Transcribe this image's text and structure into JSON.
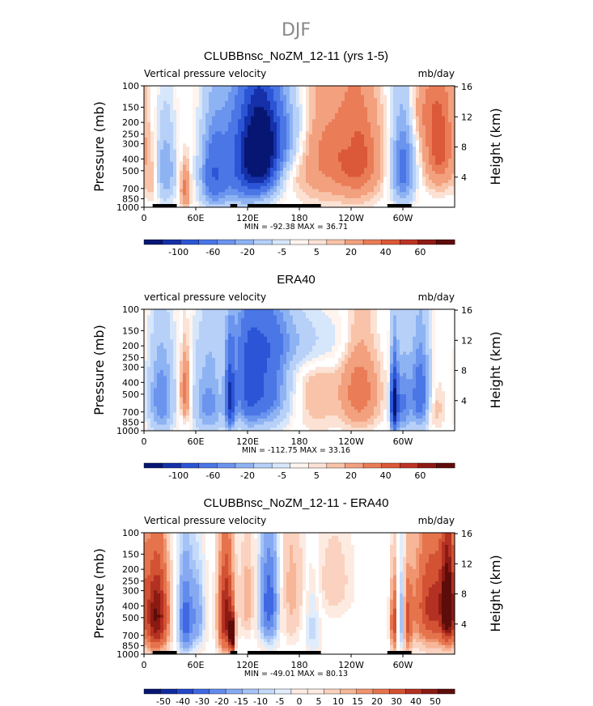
{
  "figure": {
    "title": "DJF"
  },
  "colors": {
    "zero": "#ffffff",
    "land": "#000000",
    "scale_neg": [
      "#fff4ee",
      "#d6e6fb",
      "#b7d0f8",
      "#8eb3f3",
      "#6b94ee",
      "#4a76e6",
      "#2b55d6",
      "#1530a8",
      "#061672"
    ],
    "scale_pos": [
      "#fbe2d4",
      "#f8c3a8",
      "#f2a07e",
      "#ea7c58",
      "#db5838",
      "#bd3424",
      "#8f1a14",
      "#5e0c0a"
    ],
    "diff_neg": [
      "#fdebe2",
      "#e2edfc",
      "#c5dafa",
      "#a6c3f6",
      "#86a9f2",
      "#628bec",
      "#4068e2",
      "#2447c8",
      "#0f2a9e",
      "#061672"
    ],
    "diff_pos": [
      "#fdebe2",
      "#fad2bf",
      "#f6b697",
      "#ef946f",
      "#e5734c",
      "#d25233",
      "#b33122",
      "#8a1a12",
      "#5e0c0a"
    ]
  },
  "chart_data": [
    {
      "type": "heatmap",
      "title": "CLUBBnsc_NoZM_12-11 (yrs 1-5)",
      "left_label": "Vertical pressure velocity",
      "right_label": "mb/day",
      "ylabel": "Pressure (mb)",
      "y2label": "Height (km)",
      "x_ticks": [
        "0",
        "60E",
        "120E",
        "180",
        "120W",
        "60W"
      ],
      "x_tick_lon": [
        0,
        60,
        120,
        180,
        240,
        300
      ],
      "xlim": [
        0,
        360
      ],
      "y_ticks": [
        "100",
        "150",
        "200",
        "250",
        "300",
        "400",
        "500",
        "700",
        "850",
        "1000"
      ],
      "y_tick_values": [
        100,
        150,
        200,
        250,
        300,
        400,
        500,
        700,
        850,
        1000
      ],
      "ylim": [
        100,
        1000
      ],
      "y2_ticks": [
        "16",
        "12",
        "8",
        "4"
      ],
      "y2_values": [
        16,
        12,
        8,
        4
      ],
      "stats": "MIN = -92.38   MAX =  36.71",
      "min": -92.38,
      "max": 36.71,
      "colorbar_labels": [
        "-100",
        "-60",
        "-20",
        "-5",
        "5",
        "20",
        "40",
        "60"
      ],
      "levels": [
        -100,
        -80,
        -60,
        -40,
        -20,
        -10,
        -5,
        -2,
        2,
        5,
        10,
        20,
        30,
        40,
        50,
        60,
        80
      ],
      "land_lon": [
        [
          10,
          38
        ],
        [
          100,
          108
        ],
        [
          120,
          205
        ],
        [
          282,
          310
        ]
      ],
      "blobs": [
        {
          "lon": 135,
          "p": 380,
          "v": -92,
          "wl": 14,
          "wp": 220
        },
        {
          "lon": 115,
          "p": 450,
          "v": -55,
          "wl": 22,
          "wp": 320
        },
        {
          "lon": 150,
          "p": 250,
          "v": -40,
          "wl": 22,
          "wp": 140
        },
        {
          "lon": 80,
          "p": 550,
          "v": -45,
          "wl": 10,
          "wp": 280
        },
        {
          "lon": 25,
          "p": 500,
          "v": -30,
          "wl": 8,
          "wp": 250
        },
        {
          "lon": 48,
          "p": 700,
          "v": 25,
          "wl": 4,
          "wp": 200
        },
        {
          "lon": 10,
          "p": 600,
          "v": 10,
          "wl": 6,
          "wp": 200
        },
        {
          "lon": 215,
          "p": 350,
          "v": 24,
          "wl": 28,
          "wp": 300
        },
        {
          "lon": 250,
          "p": 400,
          "v": 26,
          "wl": 16,
          "wp": 260
        },
        {
          "lon": 238,
          "p": 300,
          "v": -6,
          "wl": 6,
          "wp": 80
        },
        {
          "lon": 300,
          "p": 480,
          "v": -48,
          "wl": 9,
          "wp": 280
        },
        {
          "lon": 342,
          "p": 300,
          "v": 37,
          "wl": 12,
          "wp": 220
        },
        {
          "lon": 320,
          "p": 160,
          "v": 12,
          "wl": 12,
          "wp": 80
        },
        {
          "lon": 200,
          "p": 150,
          "v": -4,
          "wl": 40,
          "wp": 60
        }
      ]
    },
    {
      "type": "heatmap",
      "title": "ERA40",
      "left_label": "vertical pressure velocity",
      "right_label": "mb/day",
      "ylabel": "Pressure (mb)",
      "y2label": "Height (km)",
      "x_ticks": [
        "0",
        "60E",
        "120E",
        "180",
        "120W",
        "60W"
      ],
      "x_tick_lon": [
        0,
        60,
        120,
        180,
        240,
        300
      ],
      "xlim": [
        0,
        360
      ],
      "y_ticks": [
        "100",
        "150",
        "200",
        "250",
        "300",
        "400",
        "500",
        "700",
        "850",
        "1000"
      ],
      "y_tick_values": [
        100,
        150,
        200,
        250,
        300,
        400,
        500,
        700,
        850,
        1000
      ],
      "ylim": [
        100,
        1000
      ],
      "y2_ticks": [
        "16",
        "12",
        "8",
        "4"
      ],
      "y2_values": [
        16,
        12,
        8,
        4
      ],
      "stats": "MIN = -112.75   MAX =  33.16",
      "min": -112.75,
      "max": 33.16,
      "colorbar_labels": [
        "-100",
        "-60",
        "-20",
        "-5",
        "5",
        "20",
        "40",
        "60"
      ],
      "levels": [
        -100,
        -80,
        -60,
        -40,
        -20,
        -10,
        -5,
        -2,
        2,
        5,
        10,
        20,
        30,
        40,
        50,
        60,
        80
      ],
      "land_lon": [],
      "blobs": [
        {
          "lon": 100,
          "p": 550,
          "v": -80,
          "wl": 4,
          "wp": 250
        },
        {
          "lon": 140,
          "p": 420,
          "v": -55,
          "wl": 18,
          "wp": 300
        },
        {
          "lon": 120,
          "p": 450,
          "v": -40,
          "wl": 10,
          "wp": 300
        },
        {
          "lon": 75,
          "p": 600,
          "v": -35,
          "wl": 12,
          "wp": 300
        },
        {
          "lon": 20,
          "p": 550,
          "v": -40,
          "wl": 10,
          "wp": 300
        },
        {
          "lon": 48,
          "p": 480,
          "v": 30,
          "wl": 4,
          "wp": 200
        },
        {
          "lon": 200,
          "p": 500,
          "v": 8,
          "wl": 20,
          "wp": 300
        },
        {
          "lon": 250,
          "p": 480,
          "v": 28,
          "wl": 14,
          "wp": 250
        },
        {
          "lon": 290,
          "p": 600,
          "v": -112,
          "wl": 3,
          "wp": 250
        },
        {
          "lon": 300,
          "p": 600,
          "v": -40,
          "wl": 6,
          "wp": 300
        },
        {
          "lon": 320,
          "p": 500,
          "v": -55,
          "wl": 8,
          "wp": 280
        },
        {
          "lon": 335,
          "p": 650,
          "v": 10,
          "wl": 8,
          "wp": 200
        },
        {
          "lon": 160,
          "p": 180,
          "v": -20,
          "wl": 50,
          "wp": 80
        }
      ]
    },
    {
      "type": "heatmap",
      "title": "CLUBBnsc_NoZM_12-11 - ERA40",
      "left_label": "Vertical pressure velocity",
      "right_label": "mb/day",
      "ylabel": "Pressure (mb)",
      "y2label": "Height (km)",
      "x_ticks": [
        "0",
        "60E",
        "120E",
        "180",
        "120W",
        "60W"
      ],
      "x_tick_lon": [
        0,
        60,
        120,
        180,
        240,
        300
      ],
      "xlim": [
        0,
        360
      ],
      "y_ticks": [
        "100",
        "150",
        "200",
        "250",
        "300",
        "400",
        "500",
        "700",
        "850",
        "1000"
      ],
      "y_tick_values": [
        100,
        150,
        200,
        250,
        300,
        400,
        500,
        700,
        850,
        1000
      ],
      "ylim": [
        100,
        1000
      ],
      "y2_ticks": [
        "16",
        "12",
        "8",
        "4"
      ],
      "y2_values": [
        16,
        12,
        8,
        4
      ],
      "stats": "MIN = -49.01   MAX =  80.13",
      "min": -49.01,
      "max": 80.13,
      "colorbar_labels": [
        "-50",
        "-40",
        "-30",
        "-20",
        "-15",
        "-10",
        "-5",
        "0",
        "5",
        "10",
        "15",
        "20",
        "30",
        "40",
        "50"
      ],
      "levels": [
        -60,
        -50,
        -40,
        -30,
        -20,
        -15,
        -10,
        -5,
        -2,
        2,
        5,
        10,
        15,
        20,
        30,
        40,
        50,
        60
      ],
      "land_lon": [
        [
          10,
          38
        ],
        [
          100,
          108
        ],
        [
          120,
          205
        ],
        [
          282,
          310
        ]
      ],
      "blobs": [
        {
          "lon": 15,
          "p": 480,
          "v": 60,
          "wl": 9,
          "wp": 280
        },
        {
          "lon": 48,
          "p": 520,
          "v": -45,
          "wl": 6,
          "wp": 300
        },
        {
          "lon": 62,
          "p": 480,
          "v": -25,
          "wl": 6,
          "wp": 250
        },
        {
          "lon": 95,
          "p": 480,
          "v": 55,
          "wl": 6,
          "wp": 300
        },
        {
          "lon": 102,
          "p": 700,
          "v": 80,
          "wl": 2,
          "wp": 150
        },
        {
          "lon": 120,
          "p": 350,
          "v": 15,
          "wl": 6,
          "wp": 200
        },
        {
          "lon": 145,
          "p": 380,
          "v": -48,
          "wl": 8,
          "wp": 260
        },
        {
          "lon": 170,
          "p": 300,
          "v": 12,
          "wl": 10,
          "wp": 300
        },
        {
          "lon": 195,
          "p": 600,
          "v": -12,
          "wl": 6,
          "wp": 300
        },
        {
          "lon": 220,
          "p": 250,
          "v": 8,
          "wl": 15,
          "wp": 150
        },
        {
          "lon": 290,
          "p": 550,
          "v": 35,
          "wl": 3,
          "wp": 250
        },
        {
          "lon": 298,
          "p": 500,
          "v": -30,
          "wl": 3,
          "wp": 250
        },
        {
          "lon": 305,
          "p": 550,
          "v": 30,
          "wl": 4,
          "wp": 250
        },
        {
          "lon": 335,
          "p": 400,
          "v": 45,
          "wl": 16,
          "wp": 280
        },
        {
          "lon": 352,
          "p": 400,
          "v": 60,
          "wl": 5,
          "wp": 250
        }
      ]
    }
  ]
}
